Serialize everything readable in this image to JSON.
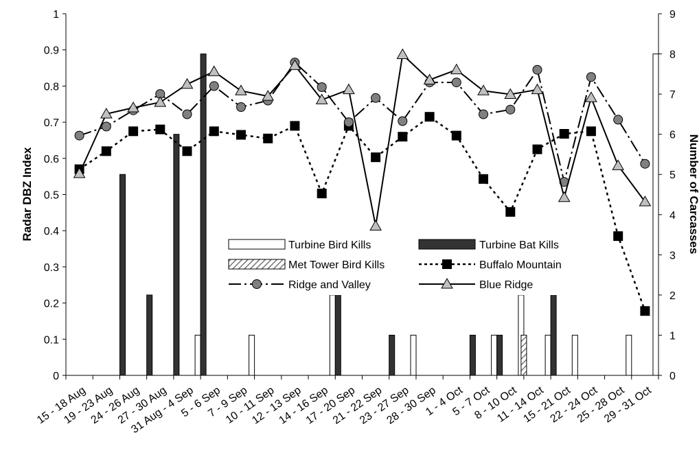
{
  "chart_data": {
    "type": "bar+line",
    "title": "",
    "ylabel_left": "Radar DBZ Index",
    "ylabel_right": "Number of Carcasses",
    "ylim_left": [
      0,
      1
    ],
    "ylim_right": [
      0,
      9
    ],
    "yticks_left": [
      "0",
      "0.1",
      "0.2",
      "0.3",
      "0.4",
      "0.5",
      "0.6",
      "0.7",
      "0.8",
      "0.9",
      "1"
    ],
    "yticks_right": [
      "0",
      "1",
      "2",
      "3",
      "4",
      "5",
      "6",
      "7",
      "8",
      "9"
    ],
    "grid": false,
    "legend_position": "center",
    "categories": [
      "15 - 18 Aug",
      "19 - 23 Aug",
      "24 - 26 Aug",
      "27 - 30 Aug",
      "31 Aug - 4 Sep",
      "5 - 6 Sep",
      "7 - 9 Sep",
      "10 - 11 Sep",
      "12 - 13 Sep",
      "14 - 16 Sep",
      "17 - 20 Sep",
      "21 - 22 Sep",
      "23 - 27 Sep",
      "28 - 30 Sep",
      "1 - 4 Oct",
      "5 - 7 Oct",
      "8 - 10 Oct",
      "11 - 14 Oct",
      "15 - 21 Oct",
      "22 - 24 Oct",
      "25 - 28 Oct",
      "29 - 31 Oct"
    ],
    "bar_series": [
      {
        "name": "Turbine Bird Kills",
        "axis": "right",
        "color": "#ffffff",
        "values": [
          0,
          0,
          0,
          0,
          1,
          0,
          1,
          0,
          0,
          2,
          0,
          0,
          1,
          0,
          0,
          1,
          2,
          1,
          1,
          0,
          1,
          8
        ]
      },
      {
        "name": "Turbine Bat Kills",
        "axis": "right",
        "color": "#333333",
        "values": [
          0,
          5,
          2,
          6,
          8,
          0,
          0,
          0,
          0,
          2,
          0,
          1,
          0,
          0,
          1,
          1,
          0,
          2,
          0,
          0,
          0,
          0
        ]
      },
      {
        "name": "Met Tower Bird Kills",
        "axis": "right",
        "color": "#999999",
        "values": [
          0,
          0,
          0,
          0,
          0,
          0,
          0,
          0,
          0,
          0,
          0,
          0,
          0,
          0,
          0,
          0,
          1,
          0,
          0,
          0,
          0,
          0
        ]
      }
    ],
    "line_series": [
      {
        "name": "Buffalo Mountain",
        "axis": "left",
        "color": "#000000",
        "values": [
          0.57,
          0.62,
          0.675,
          0.68,
          0.62,
          0.675,
          0.665,
          0.655,
          0.69,
          0.503,
          0.69,
          0.603,
          0.66,
          0.715,
          0.663,
          0.543,
          0.452,
          0.625,
          0.668,
          0.675,
          0.385,
          0.178
        ]
      },
      {
        "name": "Ridge and Valley",
        "axis": "left",
        "color": "#808080",
        "values": [
          0.663,
          0.688,
          0.733,
          0.778,
          0.722,
          0.8,
          0.742,
          0.76,
          0.865,
          0.797,
          0.7,
          0.767,
          0.703,
          0.81,
          0.81,
          0.722,
          0.735,
          0.845,
          0.535,
          0.825,
          0.707,
          0.585
        ]
      },
      {
        "name": "Blue Ridge",
        "axis": "left",
        "color": "#c0c0c0",
        "values": [
          0.558,
          0.723,
          0.74,
          0.755,
          0.805,
          0.84,
          0.787,
          0.772,
          0.857,
          0.762,
          0.79,
          0.413,
          0.887,
          0.817,
          0.845,
          0.787,
          0.777,
          0.79,
          0.492,
          0.768,
          0.58,
          0.48
        ]
      }
    ]
  }
}
